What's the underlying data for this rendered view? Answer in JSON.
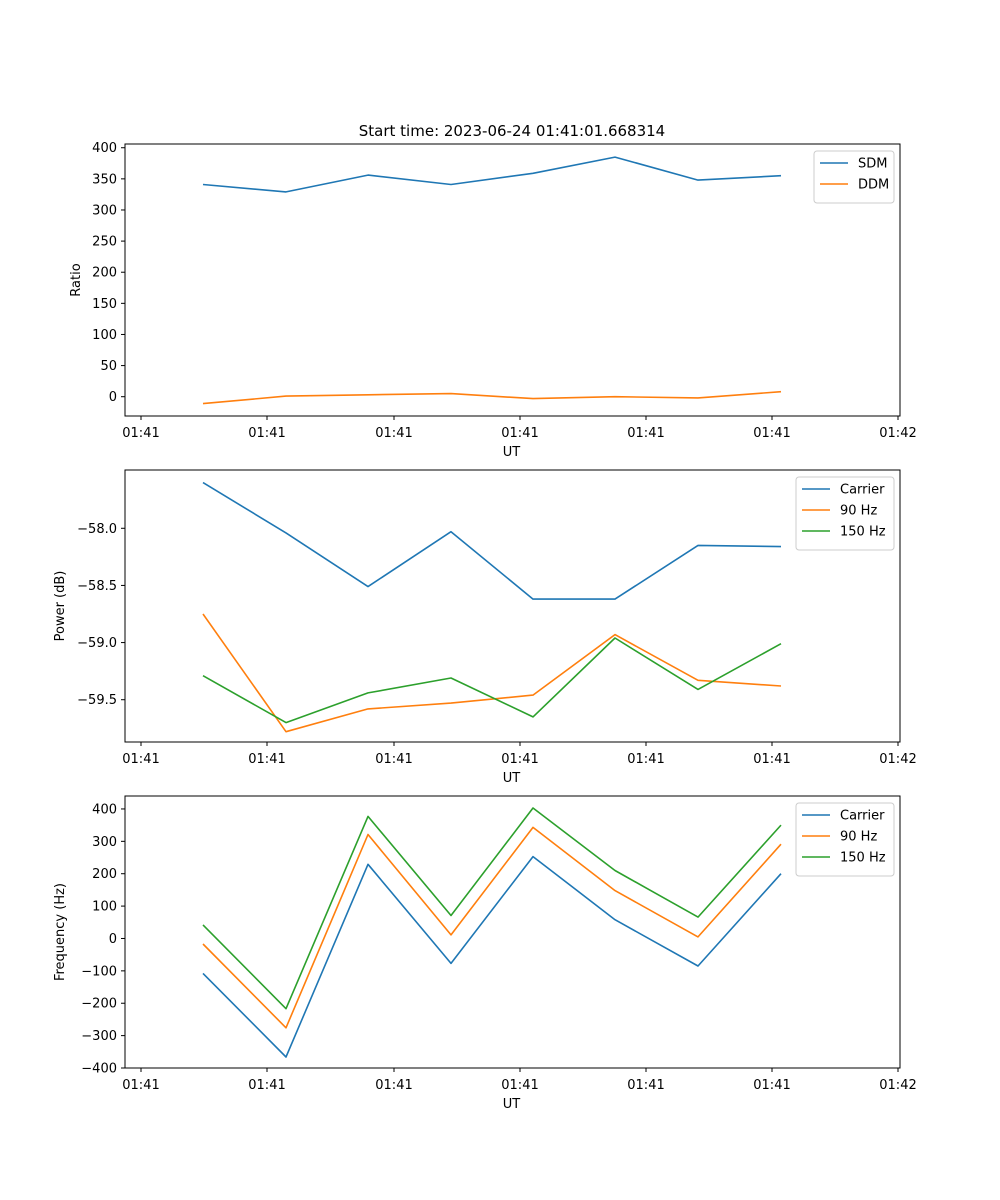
{
  "title": "Start time: 2023-06-24 01:41:01.668314",
  "colors": {
    "blue": "#1f77b4",
    "orange": "#ff7f0e",
    "green": "#2ca02c"
  },
  "chart_data": [
    {
      "type": "line",
      "xlabel": "UT",
      "ylabel": "Ratio",
      "x_tick_labels": [
        "01:41",
        "01:41",
        "01:41",
        "01:41",
        "01:41",
        "01:41",
        "01:42"
      ],
      "y_ticks": [
        0,
        50,
        100,
        150,
        200,
        250,
        300,
        350,
        400
      ],
      "ylim": [
        -31,
        406
      ],
      "legend": "top-right",
      "grid": false,
      "series": [
        {
          "name": "SDM",
          "color": "#1f77b4",
          "values": [
            341,
            329,
            356,
            341,
            359,
            385,
            348,
            355
          ]
        },
        {
          "name": "DDM",
          "color": "#ff7f0e",
          "values": [
            -11,
            1,
            3,
            5,
            -3,
            0,
            -2,
            8
          ]
        }
      ]
    },
    {
      "type": "line",
      "xlabel": "UT",
      "ylabel": "Power (dB)",
      "x_tick_labels": [
        "01:41",
        "01:41",
        "01:41",
        "01:41",
        "01:41",
        "01:41",
        "01:42"
      ],
      "y_ticks": [
        -59.5,
        -59.0,
        -58.5,
        -58.0
      ],
      "ylim": [
        -59.87,
        -57.49
      ],
      "legend": "top-right",
      "grid": false,
      "series": [
        {
          "name": "Carrier",
          "color": "#1f77b4",
          "values": [
            -57.6,
            -58.04,
            -58.51,
            -58.03,
            -58.62,
            -58.62,
            -58.15,
            -58.16
          ]
        },
        {
          "name": "90 Hz",
          "color": "#ff7f0e",
          "values": [
            -58.75,
            -59.78,
            -59.58,
            -59.53,
            -59.46,
            -58.93,
            -59.33,
            -59.38
          ]
        },
        {
          "name": "150 Hz",
          "color": "#2ca02c",
          "values": [
            -59.29,
            -59.7,
            -59.44,
            -59.31,
            -59.65,
            -58.96,
            -59.41,
            -59.01
          ]
        }
      ]
    },
    {
      "type": "line",
      "xlabel": "UT",
      "ylabel": "Frequency (Hz)",
      "x_tick_labels": [
        "01:41",
        "01:41",
        "01:41",
        "01:41",
        "01:41",
        "01:41",
        "01:42"
      ],
      "y_ticks": [
        -400,
        -300,
        -200,
        -100,
        0,
        100,
        200,
        300,
        400
      ],
      "ylim": [
        -400,
        440
      ],
      "legend": "top-right",
      "grid": false,
      "series": [
        {
          "name": "Carrier",
          "color": "#1f77b4",
          "values": [
            -108,
            -366,
            229,
            -77,
            253,
            58,
            -85,
            200
          ]
        },
        {
          "name": "90 Hz",
          "color": "#ff7f0e",
          "values": [
            -17,
            -276,
            321,
            11,
            343,
            148,
            5,
            291
          ]
        },
        {
          "name": "150 Hz",
          "color": "#2ca02c",
          "values": [
            42,
            -217,
            377,
            71,
            403,
            210,
            66,
            350
          ]
        }
      ]
    }
  ]
}
